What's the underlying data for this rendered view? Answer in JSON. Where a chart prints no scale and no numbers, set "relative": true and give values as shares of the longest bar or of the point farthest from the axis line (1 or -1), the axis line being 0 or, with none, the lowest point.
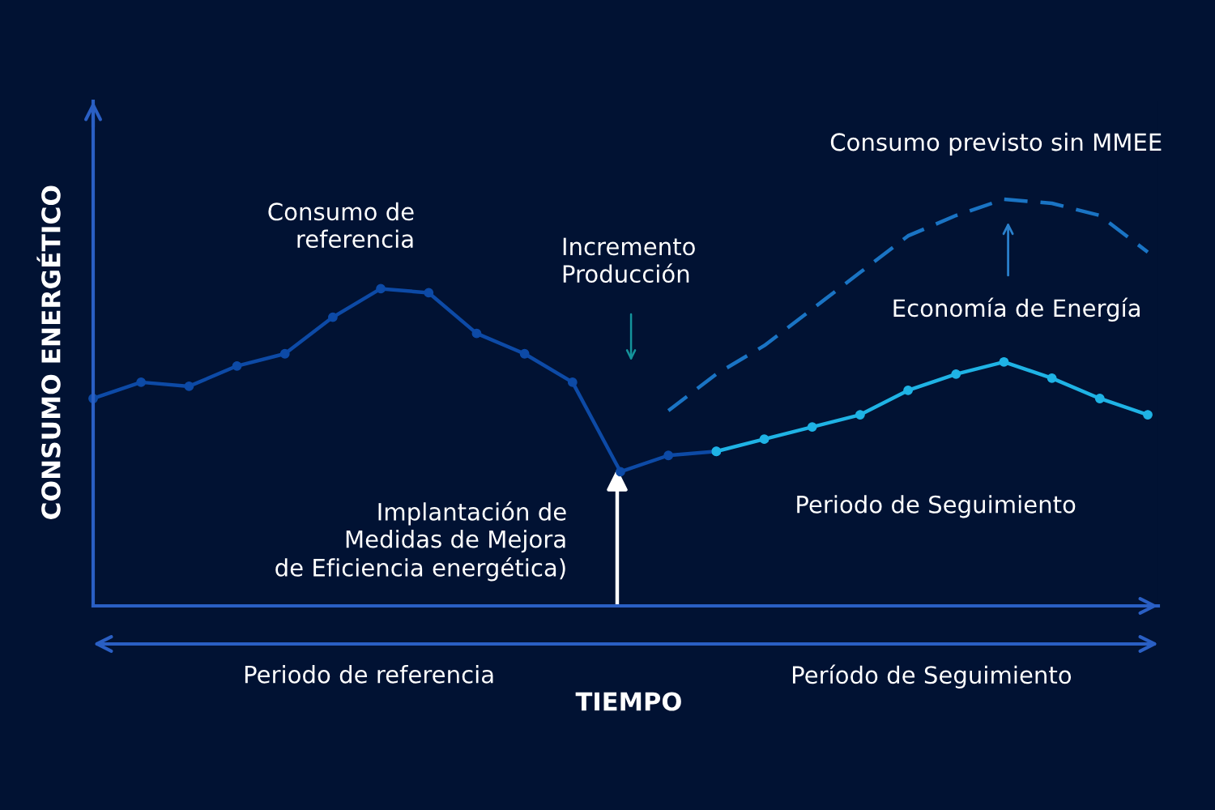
{
  "chart_data": {
    "type": "line",
    "relative": true,
    "marker": "circle",
    "line_style": "solid",
    "xlabel": "TIEMPO",
    "ylabel": "CONSUMO ENERGÉTICO",
    "categories": [
      null,
      null,
      null,
      null,
      null,
      null,
      null,
      null,
      null,
      null,
      null,
      null,
      null,
      null,
      null,
      null,
      null,
      null,
      null,
      null,
      null,
      null,
      null
    ],
    "series": [
      {
        "color": "#0d4aa6",
        "values": [
          0.51,
          0.55,
          0.54,
          0.59,
          0.62,
          0.71,
          0.78,
          0.77,
          0.67,
          0.62,
          0.55,
          0.33,
          0.37,
          0.38,
          null,
          null,
          null,
          null,
          null,
          null,
          null,
          null,
          null
        ]
      },
      {
        "color": "#1fb3e5",
        "values": [
          null,
          null,
          null,
          null,
          null,
          null,
          null,
          null,
          null,
          null,
          null,
          null,
          null,
          0.38,
          0.41,
          0.44,
          0.47,
          0.53,
          0.57,
          0.6,
          0.56,
          0.51,
          0.47
        ]
      },
      {
        "color": "#1a74c4",
        "line_style": "dashed",
        "marker": "none",
        "values": [
          null,
          null,
          null,
          null,
          null,
          null,
          null,
          null,
          null,
          null,
          null,
          null,
          0.48,
          0.57,
          0.64,
          0.73,
          0.82,
          0.91,
          0.96,
          1,
          0.99,
          0.96,
          0.87
        ]
      }
    ],
    "annotations": [
      "Consumo de\nreferencia",
      "Incremento\nProducción",
      "Consumo previsto sin MMEE",
      "Economía de Energía",
      "Implantación de\nMedidas de Mejora\nde Eficiencia energética)",
      "Periodo de Seguimiento",
      "Periodo de referencia",
      "Período de Seguimiento"
    ]
  }
}
